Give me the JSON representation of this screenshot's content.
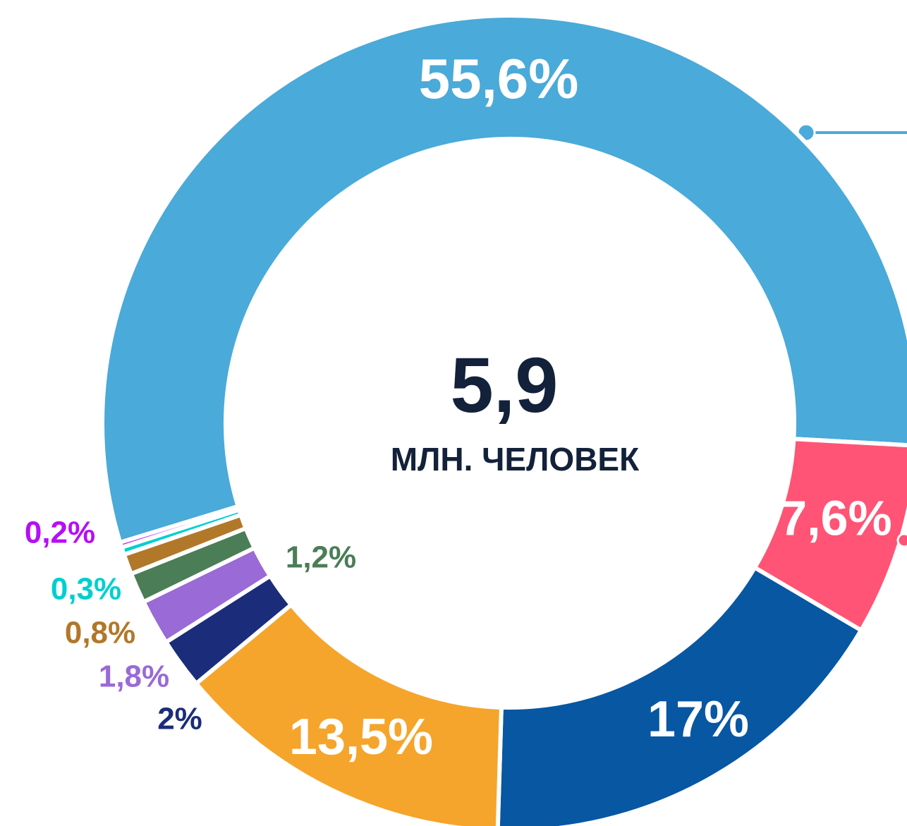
{
  "chart_data": {
    "type": "donut",
    "total": {
      "value": 5.9,
      "label": "5,9"
    },
    "unit_label": "МЛН. ЧЕЛОВЕК",
    "values": [
      55.6,
      7.6,
      17,
      13.5,
      2,
      1.8,
      1.2,
      0.8,
      0.3,
      0.2
    ],
    "value_labels": [
      "55,6%",
      "7,6%",
      "17%",
      "13,5%",
      "2%",
      "1,8%",
      "1,2%",
      "0,8%",
      "0,3%",
      "0,2%"
    ],
    "colors": [
      "#4aaad9",
      "#ff5475",
      "#0757a3",
      "#f5a52b",
      "#1b2c7a",
      "#9a6ad6",
      "#4b7d57",
      "#b1782a",
      "#00cfcf",
      "#b50ff5"
    ]
  }
}
